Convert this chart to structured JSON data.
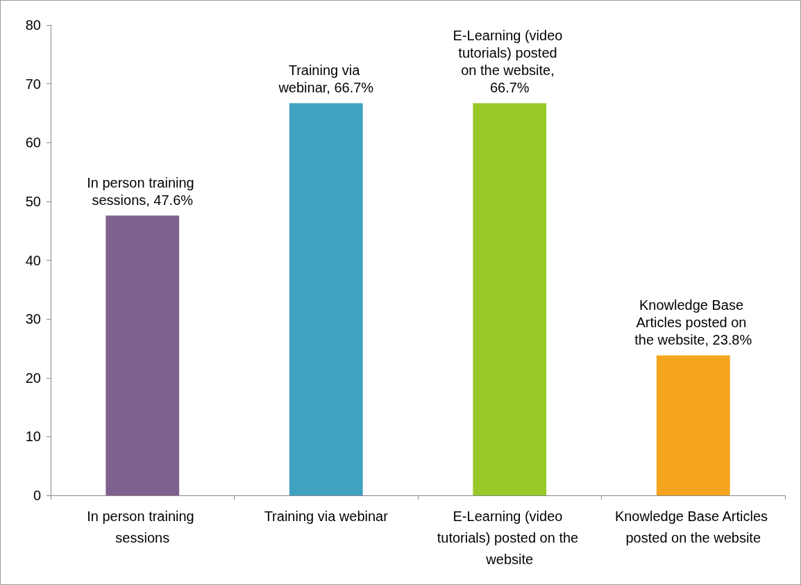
{
  "chart_data": {
    "type": "bar",
    "categories": [
      "In person training sessions",
      "Training via webinar",
      "E-Learning (video tutorials) posted on the website",
      "Knowledge Base Articles posted on the website"
    ],
    "values": [
      47.6,
      66.7,
      66.7,
      23.8
    ],
    "colors": [
      "#7f6190",
      "#3fa2c1",
      "#98c929",
      "#f5a51d"
    ],
    "value_labels": [
      "In person training sessions, 47.6%",
      "Training via webinar, 66.7%",
      "E-Learning (video tutorials) posted on the website, 66.7%",
      "Knowledge Base Articles posted on the website, 23.8%"
    ],
    "ylim": [
      0,
      80
    ],
    "yticks": [
      0,
      10,
      20,
      30,
      40,
      50,
      60,
      70,
      80
    ],
    "grid": false
  }
}
